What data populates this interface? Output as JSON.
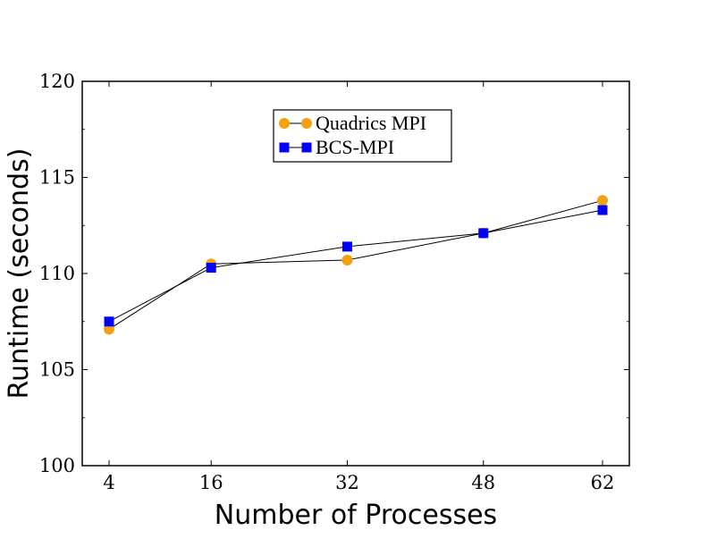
{
  "chart_data": {
    "type": "line",
    "xlabel": "Number of Processes",
    "ylabel": "Runtime (seconds)",
    "x": [
      4,
      16,
      32,
      48,
      62
    ],
    "x_tick_labels": [
      "4",
      "16",
      "32",
      "48",
      "62"
    ],
    "ylim": [
      100,
      120
    ],
    "y_ticks": [
      100,
      105,
      110,
      115,
      120
    ],
    "y_tick_labels": [
      "100",
      "105",
      "110",
      "115",
      "120"
    ],
    "grid": false,
    "legend_position": "top-center",
    "series": [
      {
        "name": "Quadrics MPI",
        "marker": "circle",
        "color": "#f5a00f",
        "values": [
          107.1,
          110.5,
          110.7,
          112.1,
          113.8
        ]
      },
      {
        "name": "BCS-MPI",
        "marker": "square",
        "color": "#0000ff",
        "values": [
          107.5,
          110.3,
          111.4,
          112.1,
          113.3
        ]
      }
    ]
  }
}
